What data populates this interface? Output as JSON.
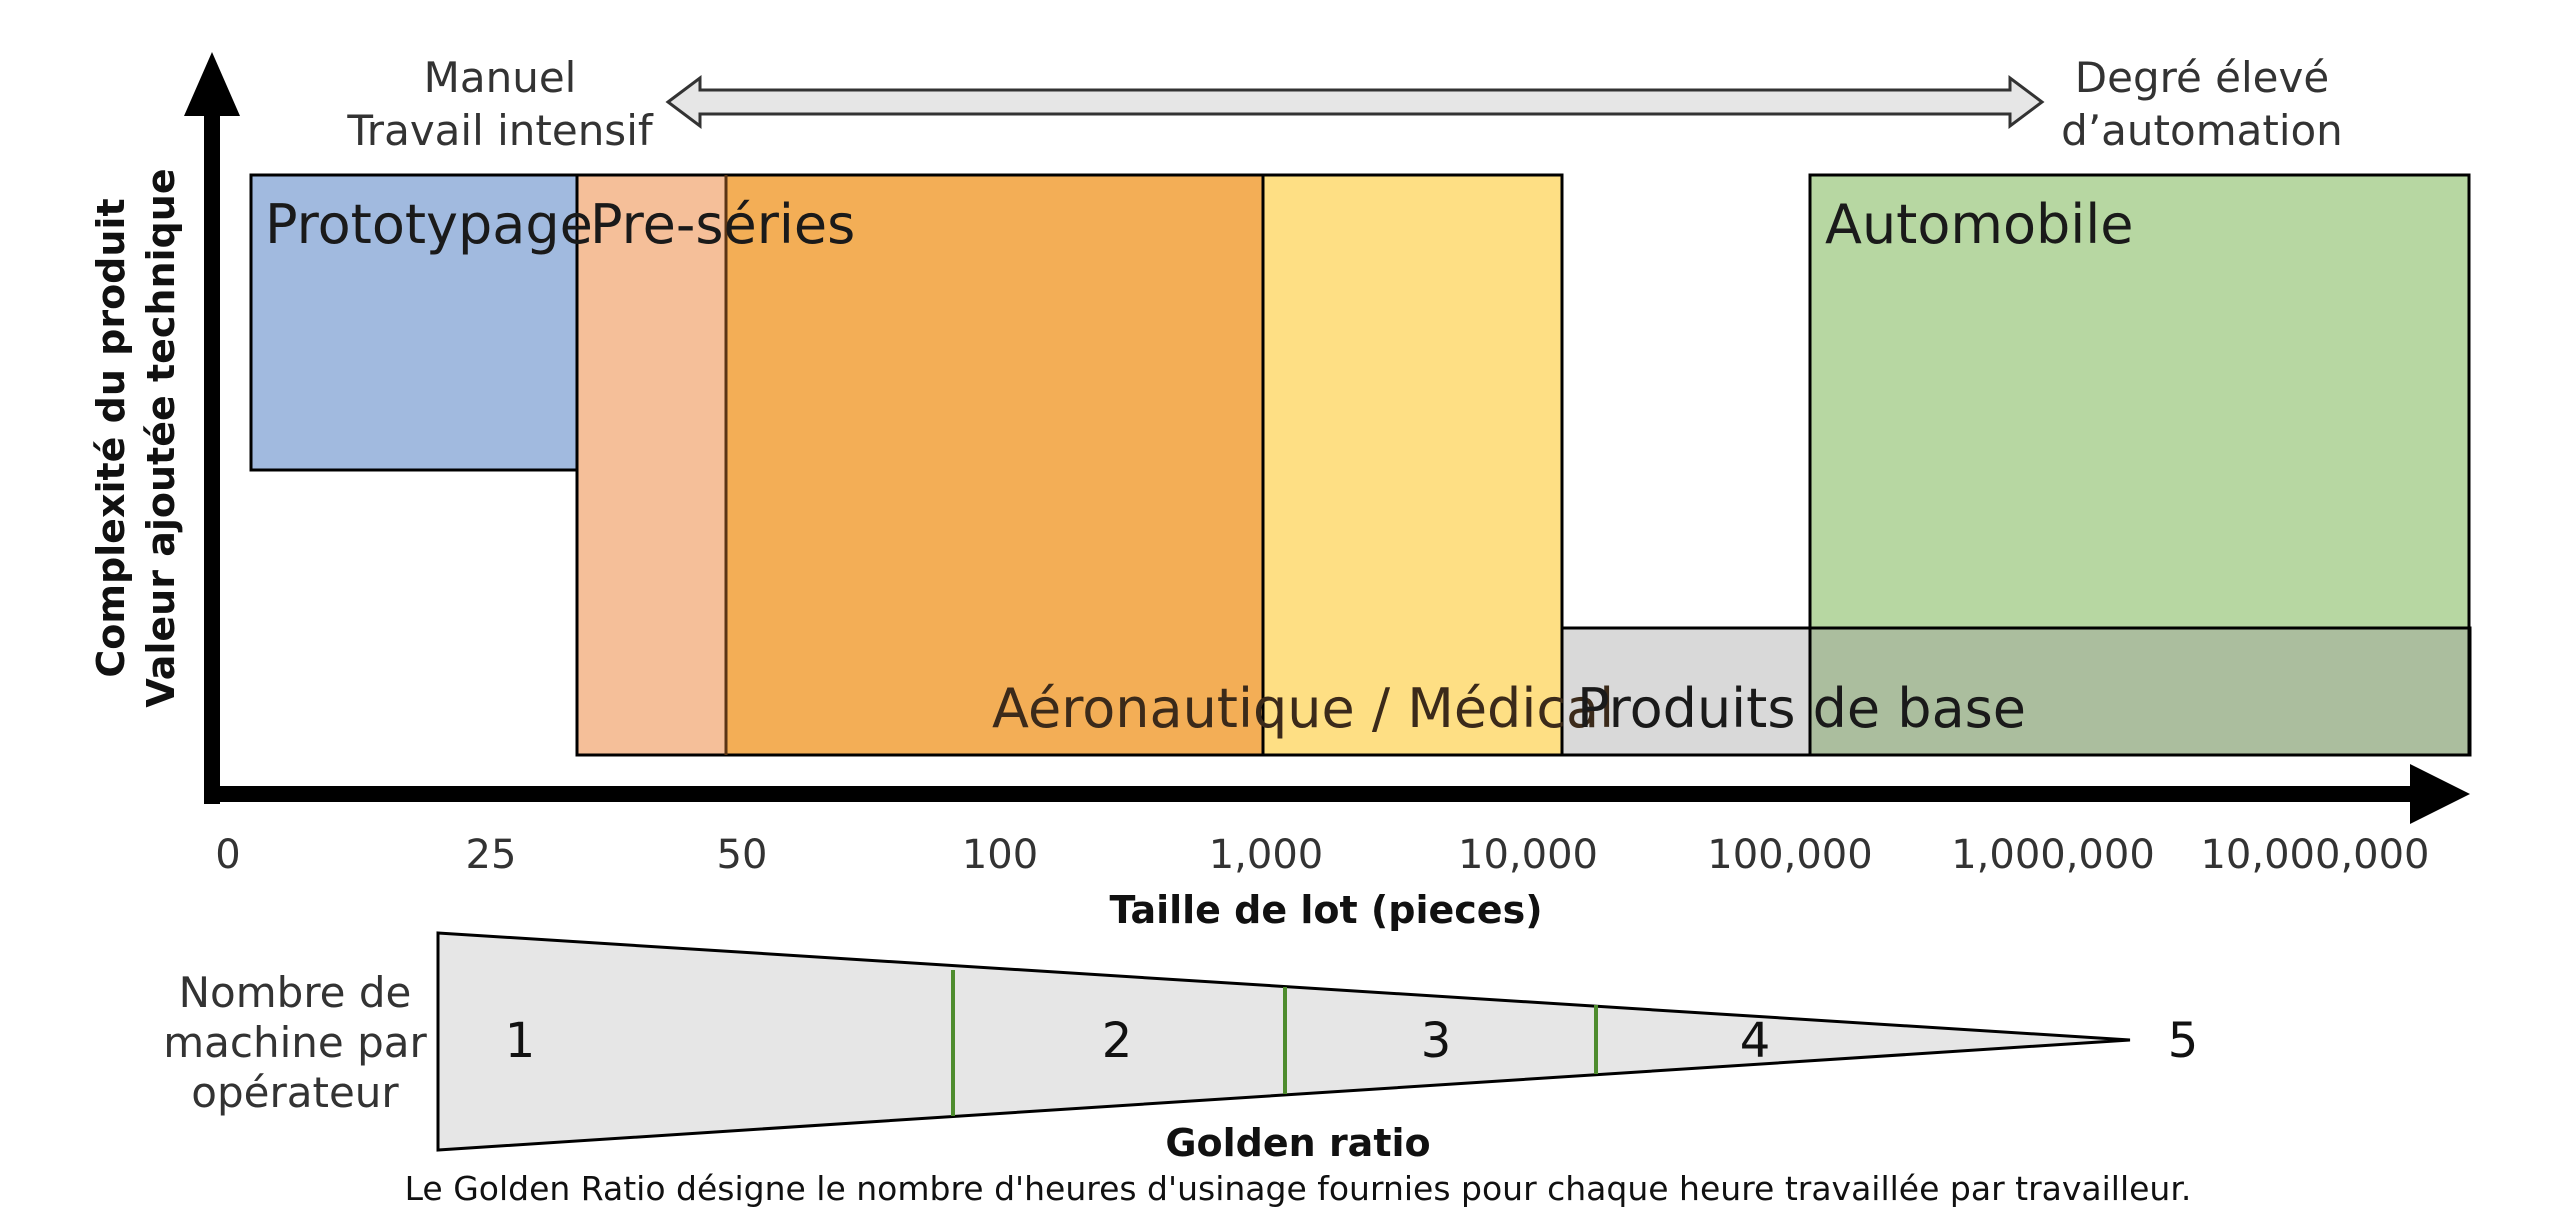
{
  "y_axis": {
    "line1": "Complexité du produit",
    "line2": "Valeur ajoutée technique"
  },
  "top_scale": {
    "left_line1": "Manuel",
    "left_line2": "Travail intensif",
    "right_line1": "Degré élevé",
    "right_line2": "d’automation"
  },
  "regions": {
    "prototype": "Prototypage",
    "preseries": "Pre-séries",
    "aero": "Aéronautique / Médical",
    "basic": "Produits de base",
    "auto": "Automobile"
  },
  "x_axis": {
    "title": "Taille de lot (pieces)",
    "ticks": [
      "0",
      "25",
      "50",
      "100",
      "1,000",
      "10,000",
      "100,000",
      "1,000,000",
      "10,000,000"
    ]
  },
  "machines": {
    "label_line1": "Nombre de",
    "label_line2": "machine par",
    "label_line3": "opérateur",
    "values": [
      "1",
      "2",
      "3",
      "4",
      "5"
    ]
  },
  "golden": {
    "title": "Golden ratio",
    "description": "Le Golden Ratio désigne le nombre d'heures d'usinage fournies pour chaque heure travaillée par travailleur."
  },
  "colors": {
    "prototype": "#a1badf",
    "preseries": "#f5bf99",
    "aero_orange": "#f3ae56",
    "aero_yellow": "#fedf84",
    "basic": "#d9d9d9",
    "auto": "#b7d7a2",
    "overlap": "#abbe9e",
    "wedge": "#e6e6e6",
    "divider": "#4e8c2e"
  }
}
